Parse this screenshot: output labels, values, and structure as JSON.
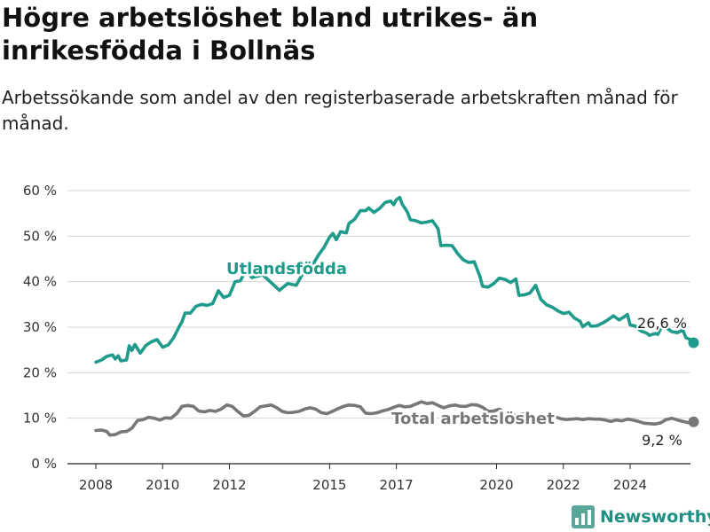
{
  "title": "Högre arbetslöshet bland utrikes- än inrikesfödda i Bollnäs",
  "subtitle": "Arbetssökande som andel av den registerbaserade arbetskraften månad för månad.",
  "brand": {
    "name": "Newsworthy",
    "color": "#1e9b8a"
  },
  "chart_data": {
    "type": "line",
    "title": "Högre arbetslöshet bland utrikes- än inrikesfödda i Bollnäs",
    "subtitle": "Arbetssökande som andel av den registerbaserade arbetskraften månad för månad.",
    "xlabel": "",
    "ylabel": "",
    "xlim": [
      2008,
      2025.2
    ],
    "ylim": [
      0,
      60
    ],
    "x_ticks": [
      "2008",
      "2010",
      "2012",
      "2015",
      "2017",
      "2020",
      "2022",
      "2024"
    ],
    "x_tick_values": [
      2008,
      2010,
      2012,
      2015,
      2017,
      2020,
      2022,
      2024
    ],
    "y_ticks": [
      "0 %",
      "10 %",
      "20 %",
      "30 %",
      "40 %",
      "50 %",
      "60 %"
    ],
    "y_tick_values": [
      0,
      10,
      20,
      30,
      40,
      50,
      60
    ],
    "grid": "horizontal",
    "series": [
      {
        "name": "Utlandsfödda",
        "color": "#1e9b8a",
        "end_label": "26,6 %",
        "points": [
          [
            2008.0,
            22.3
          ],
          [
            2008.17,
            22.8
          ],
          [
            2008.33,
            23.6
          ],
          [
            2008.5,
            23.9
          ],
          [
            2008.58,
            23.0
          ],
          [
            2008.67,
            23.7
          ],
          [
            2008.75,
            22.6
          ],
          [
            2008.92,
            22.8
          ],
          [
            2009.0,
            25.9
          ],
          [
            2009.08,
            24.9
          ],
          [
            2009.17,
            26.2
          ],
          [
            2009.33,
            24.3
          ],
          [
            2009.5,
            26.0
          ],
          [
            2009.67,
            26.8
          ],
          [
            2009.83,
            27.3
          ],
          [
            2010.0,
            25.6
          ],
          [
            2010.17,
            26.1
          ],
          [
            2010.33,
            27.7
          ],
          [
            2010.5,
            30.2
          ],
          [
            2010.58,
            31.2
          ],
          [
            2010.67,
            33.1
          ],
          [
            2010.83,
            33.1
          ],
          [
            2011.0,
            34.6
          ],
          [
            2011.17,
            35.0
          ],
          [
            2011.33,
            34.8
          ],
          [
            2011.5,
            35.2
          ],
          [
            2011.67,
            38.0
          ],
          [
            2011.83,
            36.5
          ],
          [
            2012.0,
            37.0
          ],
          [
            2012.17,
            40.0
          ],
          [
            2012.33,
            40.2
          ],
          [
            2012.5,
            42.6
          ],
          [
            2012.67,
            40.9
          ],
          [
            2013.0,
            41.5
          ],
          [
            2013.5,
            38.1
          ],
          [
            2013.75,
            39.6
          ],
          [
            2014.0,
            39.2
          ],
          [
            2014.25,
            42.5
          ],
          [
            2014.5,
            43.8
          ],
          [
            2014.67,
            45.9
          ],
          [
            2014.83,
            47.5
          ],
          [
            2015.0,
            49.8
          ],
          [
            2015.1,
            50.6
          ],
          [
            2015.2,
            49.2
          ],
          [
            2015.33,
            51.0
          ],
          [
            2015.5,
            50.7
          ],
          [
            2015.58,
            52.8
          ],
          [
            2015.75,
            53.7
          ],
          [
            2015.92,
            55.6
          ],
          [
            2016.08,
            55.6
          ],
          [
            2016.17,
            56.2
          ],
          [
            2016.33,
            55.2
          ],
          [
            2016.5,
            56.1
          ],
          [
            2016.67,
            57.4
          ],
          [
            2016.83,
            57.7
          ],
          [
            2016.92,
            56.9
          ],
          [
            2017.0,
            58.0
          ],
          [
            2017.1,
            58.5
          ],
          [
            2017.17,
            57.1
          ],
          [
            2017.33,
            55.3
          ],
          [
            2017.42,
            53.6
          ],
          [
            2017.58,
            53.4
          ],
          [
            2017.75,
            52.9
          ],
          [
            2017.92,
            53.1
          ],
          [
            2018.08,
            53.4
          ],
          [
            2018.25,
            51.6
          ],
          [
            2018.33,
            47.9
          ],
          [
            2018.5,
            48.0
          ],
          [
            2018.67,
            47.9
          ],
          [
            2018.83,
            46.2
          ],
          [
            2019.0,
            44.8
          ],
          [
            2019.17,
            44.2
          ],
          [
            2019.33,
            44.4
          ],
          [
            2019.5,
            41.2
          ],
          [
            2019.58,
            39.0
          ],
          [
            2019.75,
            38.8
          ],
          [
            2019.92,
            39.6
          ],
          [
            2020.08,
            40.8
          ],
          [
            2020.25,
            40.5
          ],
          [
            2020.42,
            39.8
          ],
          [
            2020.58,
            40.6
          ],
          [
            2020.67,
            37.0
          ],
          [
            2020.83,
            37.1
          ],
          [
            2021.0,
            37.5
          ],
          [
            2021.17,
            39.2
          ],
          [
            2021.33,
            36.1
          ],
          [
            2021.5,
            34.9
          ],
          [
            2021.67,
            34.4
          ],
          [
            2021.83,
            33.6
          ],
          [
            2022.0,
            33.0
          ],
          [
            2022.17,
            33.3
          ],
          [
            2022.33,
            32.0
          ],
          [
            2022.5,
            31.3
          ],
          [
            2022.58,
            30.1
          ],
          [
            2022.75,
            31.0
          ],
          [
            2022.83,
            30.2
          ],
          [
            2023.0,
            30.3
          ],
          [
            2023.17,
            30.9
          ],
          [
            2023.33,
            31.6
          ],
          [
            2023.5,
            32.5
          ],
          [
            2023.67,
            31.6
          ],
          [
            2023.83,
            32.3
          ],
          [
            2023.92,
            32.8
          ],
          [
            2024.0,
            30.5
          ],
          [
            2024.17,
            30.2
          ],
          [
            2024.33,
            29.1
          ],
          [
            2024.5,
            28.7
          ],
          [
            2024.58,
            28.2
          ],
          [
            2024.75,
            28.6
          ],
          [
            2024.83,
            28.4
          ],
          [
            2025.0,
            30.9
          ],
          [
            2025.1,
            29.8
          ],
          [
            2025.25,
            29.0
          ],
          [
            2025.42,
            28.8
          ],
          [
            2025.58,
            29.4
          ],
          [
            2025.67,
            27.7
          ],
          [
            2025.83,
            27.2
          ],
          [
            2025.9,
            26.6
          ]
        ]
      },
      {
        "name": "Total arbetslöshet",
        "color": "#777777",
        "end_label": "9,2 %",
        "points": [
          [
            2008.0,
            7.3
          ],
          [
            2008.17,
            7.4
          ],
          [
            2008.33,
            7.1
          ],
          [
            2008.42,
            6.3
          ],
          [
            2008.58,
            6.4
          ],
          [
            2008.75,
            7.0
          ],
          [
            2008.92,
            7.1
          ],
          [
            2009.08,
            7.8
          ],
          [
            2009.25,
            9.5
          ],
          [
            2009.42,
            9.7
          ],
          [
            2009.58,
            10.2
          ],
          [
            2009.75,
            10.0
          ],
          [
            2009.92,
            9.6
          ],
          [
            2010.08,
            10.1
          ],
          [
            2010.25,
            10.0
          ],
          [
            2010.42,
            11.0
          ],
          [
            2010.58,
            12.6
          ],
          [
            2010.75,
            12.8
          ],
          [
            2010.92,
            12.6
          ],
          [
            2011.08,
            11.6
          ],
          [
            2011.25,
            11.4
          ],
          [
            2011.42,
            11.7
          ],
          [
            2011.58,
            11.5
          ],
          [
            2011.75,
            12.0
          ],
          [
            2011.92,
            12.9
          ],
          [
            2012.08,
            12.6
          ],
          [
            2012.25,
            11.5
          ],
          [
            2012.42,
            10.5
          ],
          [
            2012.58,
            10.6
          ],
          [
            2012.75,
            11.5
          ],
          [
            2012.92,
            12.5
          ],
          [
            2013.08,
            12.7
          ],
          [
            2013.25,
            12.9
          ],
          [
            2013.42,
            12.3
          ],
          [
            2013.58,
            11.5
          ],
          [
            2013.75,
            11.2
          ],
          [
            2013.92,
            11.3
          ],
          [
            2014.08,
            11.5
          ],
          [
            2014.25,
            12.0
          ],
          [
            2014.42,
            12.3
          ],
          [
            2014.58,
            12.0
          ],
          [
            2014.75,
            11.2
          ],
          [
            2014.92,
            11.0
          ],
          [
            2015.08,
            11.5
          ],
          [
            2015.25,
            12.1
          ],
          [
            2015.42,
            12.6
          ],
          [
            2015.58,
            12.9
          ],
          [
            2015.75,
            12.8
          ],
          [
            2015.92,
            12.5
          ],
          [
            2016.08,
            11.1
          ],
          [
            2016.25,
            11.0
          ],
          [
            2016.42,
            11.2
          ],
          [
            2016.58,
            11.6
          ],
          [
            2016.75,
            11.9
          ],
          [
            2016.92,
            12.4
          ],
          [
            2017.08,
            12.8
          ],
          [
            2017.25,
            12.5
          ],
          [
            2017.42,
            12.6
          ],
          [
            2017.58,
            13.1
          ],
          [
            2017.75,
            13.6
          ],
          [
            2017.92,
            13.2
          ],
          [
            2018.08,
            13.4
          ],
          [
            2018.25,
            12.8
          ],
          [
            2018.42,
            12.3
          ],
          [
            2018.58,
            12.7
          ],
          [
            2018.75,
            12.9
          ],
          [
            2018.92,
            12.6
          ],
          [
            2019.08,
            12.6
          ],
          [
            2019.25,
            13.0
          ],
          [
            2019.42,
            12.9
          ],
          [
            2019.58,
            12.4
          ],
          [
            2019.75,
            11.5
          ],
          [
            2019.92,
            11.6
          ],
          [
            2020.08,
            12.0
          ],
          [
            2020.25,
            11.2
          ],
          [
            2020.42,
            10.9
          ],
          [
            2020.58,
            10.6
          ],
          [
            2020.75,
            10.9
          ],
          [
            2020.92,
            11.0
          ],
          [
            2021.08,
            10.6
          ],
          [
            2021.25,
            10.3
          ],
          [
            2021.42,
            10.2
          ],
          [
            2021.58,
            10.0
          ],
          [
            2021.75,
            10.3
          ],
          [
            2021.92,
            9.9
          ],
          [
            2022.08,
            9.7
          ],
          [
            2022.25,
            9.8
          ],
          [
            2022.42,
            9.9
          ],
          [
            2022.58,
            9.7
          ],
          [
            2022.75,
            9.9
          ],
          [
            2022.92,
            9.8
          ],
          [
            2023.08,
            9.8
          ],
          [
            2023.25,
            9.6
          ],
          [
            2023.42,
            9.3
          ],
          [
            2023.58,
            9.6
          ],
          [
            2023.75,
            9.4
          ],
          [
            2023.92,
            9.8
          ],
          [
            2024.08,
            9.6
          ],
          [
            2024.25,
            9.3
          ],
          [
            2024.42,
            8.9
          ],
          [
            2024.58,
            8.8
          ],
          [
            2024.75,
            8.7
          ],
          [
            2024.92,
            9.0
          ],
          [
            2025.08,
            9.7
          ],
          [
            2025.25,
            10.0
          ],
          [
            2025.42,
            9.6
          ],
          [
            2025.58,
            9.3
          ],
          [
            2025.75,
            9.0
          ],
          [
            2025.9,
            9.2
          ]
        ]
      }
    ]
  }
}
